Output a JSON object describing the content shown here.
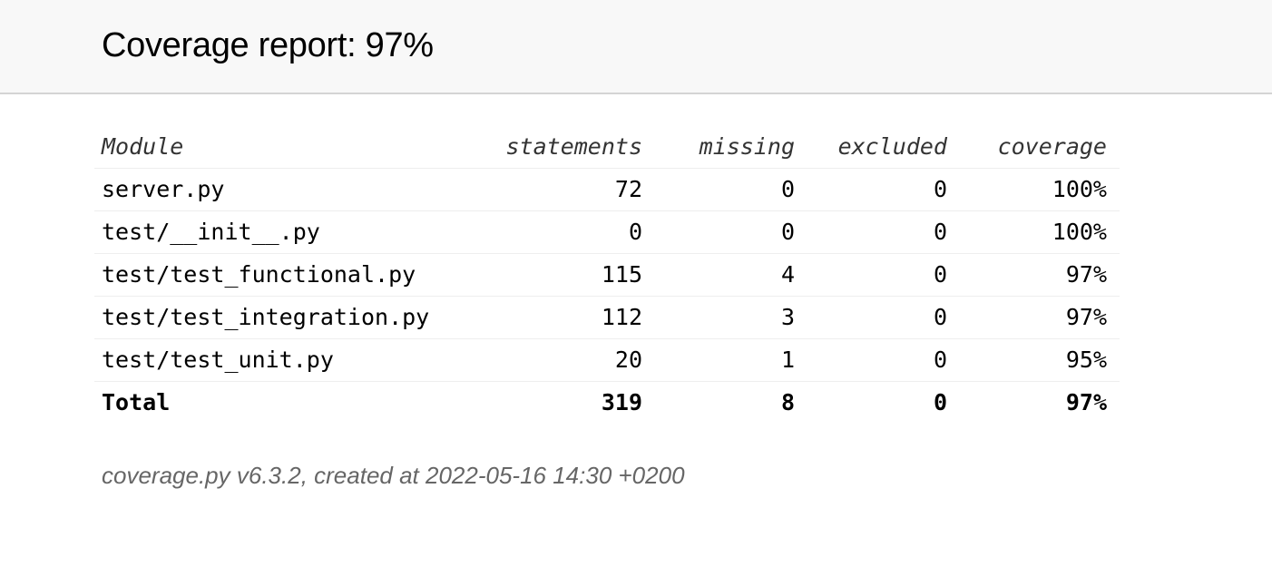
{
  "header": {
    "title": "Coverage report: 97%"
  },
  "table": {
    "columns": [
      "Module",
      "statements",
      "missing",
      "excluded",
      "coverage"
    ],
    "rows": [
      {
        "module": "server.py",
        "statements": "72",
        "missing": "0",
        "excluded": "0",
        "coverage": "100%"
      },
      {
        "module": "test/__init__.py",
        "statements": "0",
        "missing": "0",
        "excluded": "0",
        "coverage": "100%"
      },
      {
        "module": "test/test_functional.py",
        "statements": "115",
        "missing": "4",
        "excluded": "0",
        "coverage": "97%"
      },
      {
        "module": "test/test_integration.py",
        "statements": "112",
        "missing": "3",
        "excluded": "0",
        "coverage": "97%"
      },
      {
        "module": "test/test_unit.py",
        "statements": "20",
        "missing": "1",
        "excluded": "0",
        "coverage": "95%"
      }
    ],
    "total": {
      "label": "Total",
      "statements": "319",
      "missing": "8",
      "excluded": "0",
      "coverage": "97%"
    }
  },
  "footer": {
    "text": "coverage.py v6.3.2, created at 2022-05-16 14:30 +0200"
  }
}
